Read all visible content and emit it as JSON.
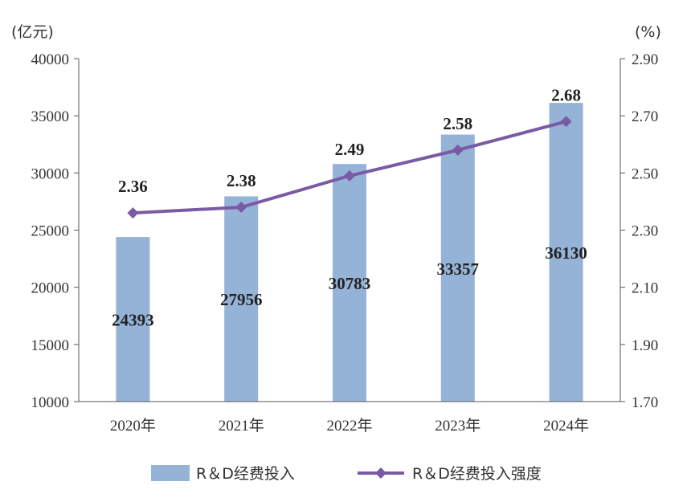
{
  "chart_data": {
    "type": "bar+line",
    "categories": [
      "2020年",
      "2021年",
      "2022年",
      "2023年",
      "2024年"
    ],
    "left_axis": {
      "unit": "(亿元)",
      "min": 10000,
      "max": 40000,
      "ticks": [
        "40000",
        "35000",
        "30000",
        "25000",
        "20000",
        "15000",
        "10000"
      ]
    },
    "right_axis": {
      "unit": "(%)",
      "min": 1.7,
      "max": 2.9,
      "ticks": [
        "2.90",
        "2.70",
        "2.50",
        "2.30",
        "2.10",
        "1.90",
        "1.70"
      ]
    },
    "series": [
      {
        "name": "R＆D经费投入",
        "type": "bar",
        "axis": "left",
        "color": "#95b3d7",
        "values": [
          24393,
          27956,
          30783,
          33357,
          36130
        ],
        "labels": [
          "24393",
          "27956",
          "30783",
          "33357",
          "36130"
        ]
      },
      {
        "name": "R＆D经费投入强度",
        "type": "line",
        "axis": "right",
        "color": "#7a5ba3",
        "values": [
          2.36,
          2.38,
          2.49,
          2.58,
          2.68
        ],
        "labels": [
          "2.36",
          "2.38",
          "2.49",
          "2.58",
          "2.68"
        ]
      }
    ],
    "legend": {
      "position": "bottom",
      "items": [
        "R＆D经费投入",
        "R＆D经费投入强度"
      ]
    },
    "grid": false
  }
}
